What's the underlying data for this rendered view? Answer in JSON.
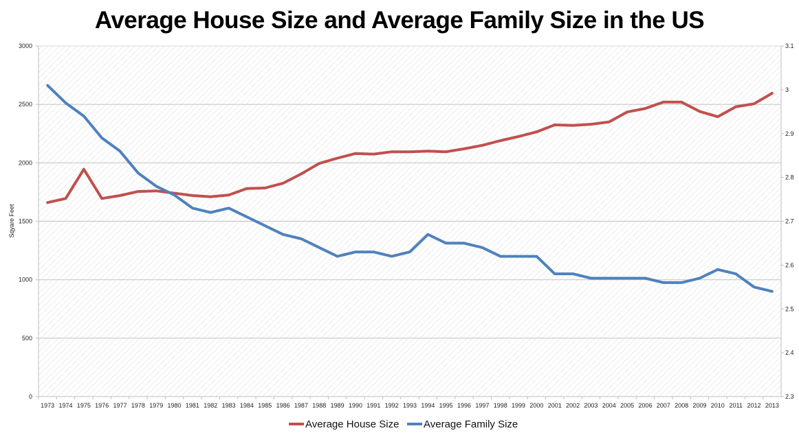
{
  "chart_data": {
    "type": "line",
    "title": "Average House Size and Average Family Size in the US",
    "ylabel": "Sqyare Feet",
    "ylabel_right": "",
    "xlabel": "",
    "x": [
      "1973",
      "1974",
      "1975",
      "1976",
      "1977",
      "1978",
      "1979",
      "1980",
      "1981",
      "1982",
      "1983",
      "1984",
      "1985",
      "1986",
      "1987",
      "1988",
      "1989",
      "1990",
      "1991",
      "1992",
      "1993",
      "1994",
      "1995",
      "1996",
      "1997",
      "1998",
      "1999",
      "2000",
      "2001",
      "2002",
      "2003",
      "2004",
      "2005",
      "2006",
      "2007",
      "2008",
      "2009",
      "2010",
      "2011",
      "2012",
      "2013"
    ],
    "ylim": [
      0,
      3000
    ],
    "yticks": [
      "0",
      "500",
      "1000",
      "1500",
      "2000",
      "2500",
      "3000"
    ],
    "ylim_right": [
      2.3,
      3.1
    ],
    "yticks_right": [
      "2.3",
      "2.4",
      "2.5",
      "2.6",
      "2.7",
      "2.8",
      "2.9",
      "3",
      "3.1"
    ],
    "grid": true,
    "legend_position": "bottom",
    "series": [
      {
        "name": "Average House Size",
        "axis": "left",
        "color": "#c0504d",
        "values": [
          1660,
          1695,
          1945,
          1695,
          1720,
          1755,
          1760,
          1740,
          1720,
          1710,
          1725,
          1780,
          1785,
          1825,
          1905,
          1995,
          2040,
          2080,
          2075,
          2095,
          2095,
          2100,
          2095,
          2120,
          2150,
          2190,
          2225,
          2265,
          2325,
          2320,
          2330,
          2350,
          2435,
          2465,
          2520,
          2520,
          2440,
          2395,
          2480,
          2505,
          2595
        ]
      },
      {
        "name": "Average Family Size",
        "axis": "right",
        "color": "#4f81bd",
        "values": [
          3.01,
          2.97,
          2.94,
          2.89,
          2.86,
          2.81,
          2.78,
          2.76,
          2.73,
          2.72,
          2.73,
          2.71,
          2.69,
          2.67,
          2.66,
          2.64,
          2.62,
          2.63,
          2.63,
          2.62,
          2.63,
          2.67,
          2.65,
          2.65,
          2.64,
          2.62,
          2.62,
          2.62,
          2.58,
          2.58,
          2.57,
          2.57,
          2.57,
          2.57,
          2.56,
          2.56,
          2.57,
          2.59,
          2.58,
          2.55,
          2.54
        ]
      }
    ]
  }
}
